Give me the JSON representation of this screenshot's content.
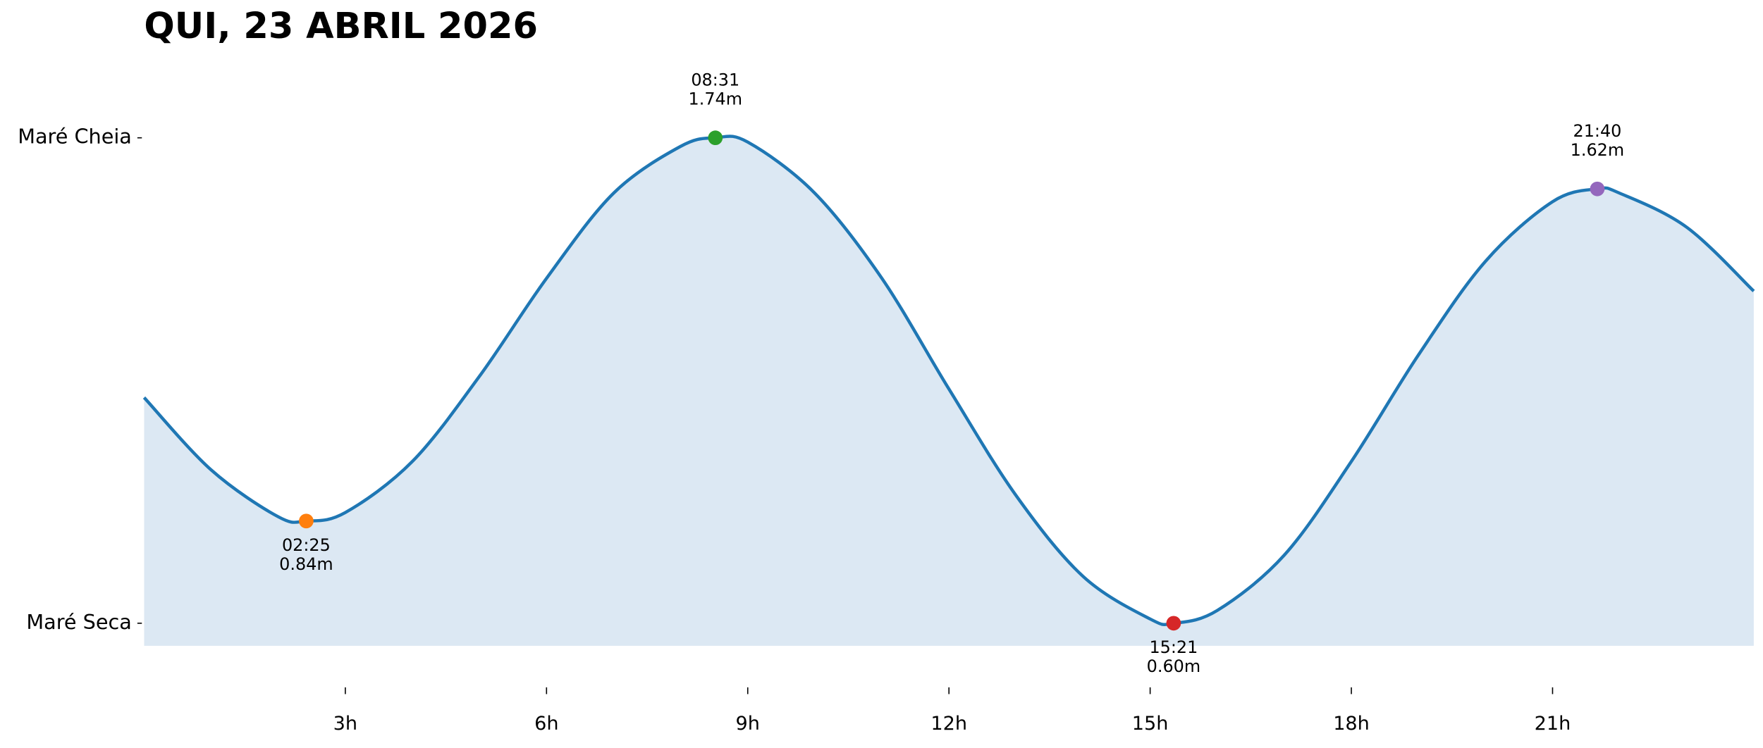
{
  "chart_data": {
    "type": "line",
    "title": "QUI, 23 ABRIL 2026",
    "x": [
      0,
      1,
      2,
      2.417,
      3,
      4,
      5,
      6,
      7,
      8,
      8.517,
      9,
      10,
      11,
      12,
      13,
      14,
      15,
      15.35,
      16,
      17,
      18,
      19,
      20,
      21,
      21.667,
      22,
      23,
      24
    ],
    "values": [
      1.13,
      0.96,
      0.85,
      0.84,
      0.86,
      0.98,
      1.18,
      1.41,
      1.61,
      1.72,
      1.74,
      1.73,
      1.61,
      1.41,
      1.15,
      0.9,
      0.71,
      0.61,
      0.6,
      0.63,
      0.76,
      0.98,
      1.23,
      1.45,
      1.59,
      1.62,
      1.61,
      1.53,
      1.38
    ],
    "color": "#1f77b4",
    "fill_color": "#dce8f3",
    "extremes": {
      "x": [
        2.417,
        8.517,
        15.35,
        21.667
      ],
      "times": [
        "02:25",
        "08:31",
        "15:21",
        "21:40"
      ],
      "values": [
        0.84,
        1.74,
        0.6,
        1.62
      ],
      "value_labels": [
        "0.84m",
        "1.74m",
        "0.60m",
        "1.62m"
      ],
      "colors": [
        "#ff7f0e",
        "#2ca02c",
        "#d62728",
        "#9467bd"
      ]
    },
    "xlim": [
      0,
      24
    ],
    "xticks": [
      {
        "value": 3,
        "label": "3h"
      },
      {
        "value": 6,
        "label": "6h"
      },
      {
        "value": 9,
        "label": "9h"
      },
      {
        "value": 12,
        "label": "12h"
      },
      {
        "value": 15,
        "label": "15h"
      },
      {
        "value": 18,
        "label": "18h"
      },
      {
        "value": 21,
        "label": "21h"
      }
    ],
    "ylim": [
      0.547,
      1.85
    ],
    "yticks": [
      {
        "value": 0.6,
        "label": "Maré Seca"
      },
      {
        "value": 1.74,
        "label": "Maré Cheia"
      }
    ],
    "grid": false
  }
}
